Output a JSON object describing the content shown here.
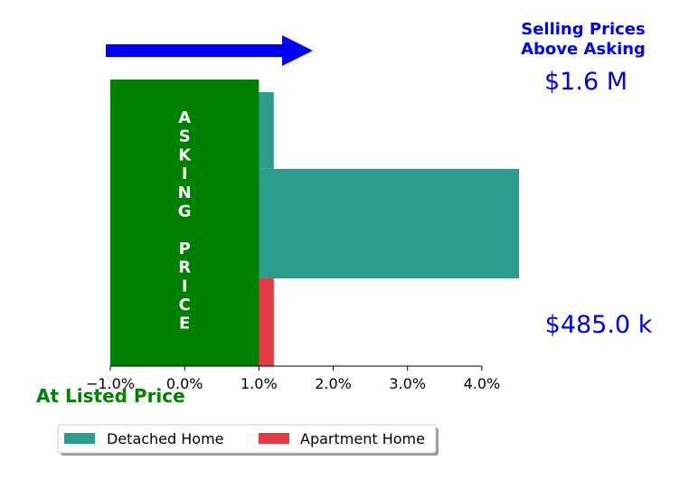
{
  "chart_data": {
    "type": "bar",
    "orientation": "horizontal",
    "x_axis": {
      "ticks": [
        -1.0,
        0.0,
        1.0,
        2.0,
        3.0,
        4.0
      ],
      "tick_labels": [
        "−1.0%",
        "0.0%",
        "1.0%",
        "2.0%",
        "3.0%",
        "4.0%"
      ],
      "xlim": [
        -1.0,
        4.5
      ],
      "grid": false
    },
    "asking_block": {
      "x_range": [
        -1.0,
        1.0
      ],
      "color": "#008000",
      "letters": [
        "A",
        "S",
        "K",
        "I",
        "N",
        "G",
        "",
        "P",
        "R",
        "I",
        "C",
        "E"
      ]
    },
    "series": [
      {
        "name": "Detached Home",
        "color": "#2a9d8f",
        "bars": [
          {
            "value": 1.2,
            "y_range": [
              0.72,
              1.0
            ]
          },
          {
            "value": 4.5,
            "y_range": [
              0.32,
              0.72
            ]
          }
        ]
      },
      {
        "name": "Apartment Home",
        "color": "#e63946",
        "bars": [
          {
            "value": 1.2,
            "y_range": [
              0.0,
              0.32
            ]
          }
        ]
      }
    ],
    "annotations": {
      "header_line1": "Selling Prices",
      "header_line2": "Above Asking",
      "top_price": "$1.6 M",
      "bottom_price": "$485.0 k",
      "listed_label": "At Listed Price"
    },
    "legend": {
      "placement": "bottom-left",
      "entries": [
        "Detached Home",
        "Apartment Home"
      ]
    },
    "arrow_color": "#0000ff",
    "text_color_blue": "#0000ff",
    "text_color_green": "#008000"
  }
}
